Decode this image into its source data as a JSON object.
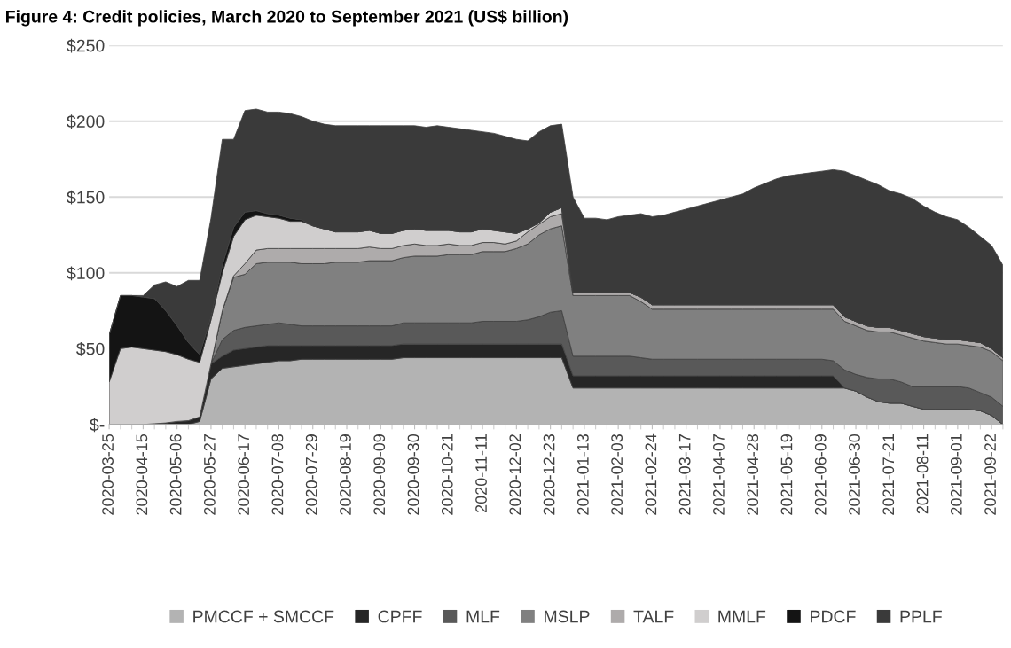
{
  "chart_data": {
    "type": "area",
    "stacked": true,
    "title": "Figure 4: Credit policies, March 2020 to September 2021 (US$ billion)",
    "categories": [
      "2020-03-25",
      null,
      null,
      "2020-04-15",
      null,
      null,
      "2020-05-06",
      null,
      null,
      "2020-05-27",
      null,
      null,
      "2020-06-17",
      null,
      null,
      "2020-07-08",
      null,
      null,
      "2020-07-29",
      null,
      null,
      "2020-08-19",
      null,
      null,
      "2020-09-09",
      null,
      null,
      "2020-09-30",
      null,
      null,
      "2020-10-21",
      null,
      null,
      "2020-11-11",
      null,
      null,
      "2020-12-02",
      null,
      null,
      "2020-12-23",
      null,
      null,
      "2021-01-13",
      null,
      null,
      "2021-02-03",
      null,
      null,
      "2021-02-24",
      null,
      null,
      "2021-03-17",
      null,
      null,
      "2021-04-07",
      null,
      null,
      "2021-04-28",
      null,
      null,
      "2021-05-19",
      null,
      null,
      "2021-06-09",
      null,
      null,
      "2021-06-30",
      null,
      null,
      "2021-07-21",
      null,
      null,
      "2021-08-11",
      null,
      null,
      "2021-09-01",
      null,
      null,
      "2021-09-22",
      null
    ],
    "series": [
      {
        "name": "PMCCF + SMCCF",
        "color": "#b3b3b3",
        "values": [
          0,
          0,
          0,
          0,
          0,
          0,
          0,
          0,
          2,
          30,
          37,
          38,
          39,
          40,
          41,
          42,
          42,
          43,
          43,
          43,
          43,
          43,
          43,
          43,
          43,
          43,
          44,
          44,
          44,
          44,
          44,
          44,
          44,
          44,
          44,
          44,
          44,
          44,
          44,
          44,
          44,
          24,
          24,
          24,
          24,
          24,
          24,
          24,
          24,
          24,
          24,
          24,
          24,
          24,
          24,
          24,
          24,
          24,
          24,
          24,
          24,
          24,
          24,
          24,
          24,
          24,
          22,
          18,
          15,
          14,
          14,
          12,
          10,
          10,
          10,
          10,
          10,
          9,
          6,
          0
        ]
      },
      {
        "name": "CPFF",
        "color": "#262626",
        "values": [
          0,
          0,
          0,
          0,
          0.5,
          1,
          2,
          2.5,
          3,
          10,
          8,
          11,
          11,
          11,
          11,
          10,
          10,
          9,
          9,
          9,
          9,
          9,
          9,
          9,
          9,
          9,
          9,
          9,
          9,
          9,
          9,
          9,
          9,
          9,
          9,
          9,
          9,
          9,
          9,
          9,
          9,
          8,
          8,
          8,
          8,
          8,
          8,
          8,
          8,
          8,
          8,
          8,
          8,
          8,
          8,
          8,
          8,
          8,
          8,
          8,
          8,
          8,
          8,
          8,
          8,
          0,
          0,
          0,
          0,
          0,
          0,
          0,
          0,
          0,
          0,
          0,
          0,
          0,
          0,
          0
        ]
      },
      {
        "name": "MLF",
        "color": "#595959",
        "values": [
          0,
          0,
          0,
          0,
          0,
          0,
          0,
          0,
          0,
          0,
          11,
          13,
          14,
          14,
          14,
          15,
          14,
          13,
          13,
          13,
          13,
          13,
          13,
          13,
          13,
          13,
          14,
          14,
          14,
          14,
          14,
          14,
          14,
          15,
          15,
          15,
          15,
          16,
          18,
          21,
          22,
          13,
          13,
          13,
          13,
          13,
          13,
          12,
          11,
          11,
          11,
          11,
          11,
          11,
          11,
          11,
          11,
          11,
          11,
          11,
          11,
          11,
          11,
          11,
          10,
          12,
          11,
          13,
          15,
          16,
          14,
          13,
          15,
          15,
          15,
          15,
          14,
          12,
          12,
          12
        ]
      },
      {
        "name": "MSLP",
        "color": "#808080",
        "values": [
          0,
          0,
          0,
          0,
          0,
          0,
          0,
          0,
          0,
          0,
          19,
          35,
          35,
          41,
          41,
          40,
          41,
          41,
          41,
          41,
          42,
          42,
          42,
          43,
          43,
          43,
          43,
          44,
          44,
          44,
          45,
          45,
          45,
          46,
          46,
          46,
          48,
          50,
          54,
          55,
          56,
          40,
          40,
          40,
          40,
          40,
          40,
          37,
          33,
          33,
          33,
          33,
          33,
          33,
          33,
          33,
          33,
          33,
          33,
          33,
          33,
          33,
          33,
          33,
          34,
          32,
          32,
          31,
          31,
          31,
          31,
          32,
          30,
          29,
          28,
          28,
          28,
          30,
          30,
          30
        ]
      },
      {
        "name": "TALF",
        "color": "#aeabab",
        "values": [
          0,
          0,
          0,
          0,
          0,
          0,
          0,
          0,
          0,
          0,
          0,
          1,
          7,
          9,
          9,
          9,
          9,
          10,
          10,
          10,
          9,
          9,
          9,
          9,
          8,
          8,
          8,
          8,
          7,
          7,
          7,
          6,
          6,
          6,
          6,
          5,
          5,
          8,
          7,
          8,
          8,
          2,
          2,
          2,
          2,
          2,
          2,
          3,
          3,
          3,
          3,
          3,
          3,
          3,
          3,
          3,
          3,
          3,
          3,
          3,
          3,
          3,
          3,
          3,
          3,
          3,
          3,
          3,
          3,
          3,
          3,
          3,
          3,
          3,
          3,
          3,
          3,
          3,
          2,
          2
        ]
      },
      {
        "name": "MMLF",
        "color": "#d0cece",
        "values": [
          28,
          50,
          51,
          50,
          48.5,
          47,
          44,
          40.5,
          36,
          29,
          25,
          26,
          29,
          23,
          21,
          20,
          18,
          18,
          15,
          13,
          11,
          11,
          11,
          11,
          10,
          10,
          10,
          10,
          10,
          10,
          9,
          9,
          9,
          9,
          8,
          8,
          5,
          2,
          1,
          3,
          4,
          0,
          0,
          0,
          0,
          0,
          0,
          0,
          0,
          0,
          0,
          0,
          0,
          0,
          0,
          0,
          0,
          0,
          0,
          0,
          0,
          0,
          0,
          0,
          0,
          0,
          0,
          0,
          0,
          0,
          0,
          0,
          0,
          0,
          0,
          0,
          0,
          0,
          0,
          0
        ]
      },
      {
        "name": "PDCF",
        "color": "#141414",
        "values": [
          31,
          35,
          34,
          34,
          34,
          27,
          19,
          11,
          5,
          2,
          5,
          6,
          5,
          3,
          2,
          2,
          2,
          1,
          0,
          0,
          0,
          0,
          0,
          0,
          0,
          0,
          0,
          0,
          0,
          0,
          0,
          0,
          0,
          0,
          0,
          0,
          0,
          0,
          0,
          0,
          0,
          0,
          0,
          0,
          0,
          0,
          0,
          0,
          0,
          0,
          0,
          0,
          0,
          0,
          0,
          0,
          0,
          0,
          0,
          0,
          0,
          0,
          0,
          0,
          0,
          0,
          0,
          0,
          0,
          0,
          0,
          0,
          0,
          0,
          0,
          0,
          0,
          0,
          0,
          0
        ]
      },
      {
        "name": "PPLF",
        "color": "#3a3a3a",
        "values": [
          0,
          0,
          0,
          1,
          9,
          19,
          26,
          41,
          49,
          65,
          83,
          58,
          67,
          67,
          67,
          68,
          69,
          68,
          69,
          69,
          70,
          70,
          70,
          69,
          71,
          71,
          69,
          68,
          68,
          69,
          68,
          68,
          67,
          64,
          64,
          63,
          62,
          58,
          60,
          57,
          55,
          63,
          49,
          49,
          48,
          50,
          51,
          55,
          58,
          59,
          61,
          63,
          65,
          67,
          69,
          71,
          73,
          77,
          80,
          83,
          85,
          86,
          87,
          88,
          89,
          96,
          96,
          96,
          94,
          90,
          90,
          89,
          86,
          83,
          81,
          79,
          75,
          70,
          68,
          61
        ]
      }
    ],
    "ylim": [
      0,
      250
    ],
    "yticks": [
      {
        "value": 0,
        "label": "$-"
      },
      {
        "value": 50,
        "label": "$50"
      },
      {
        "value": 100,
        "label": "$100"
      },
      {
        "value": 150,
        "label": "$150"
      },
      {
        "value": 200,
        "label": "$200"
      },
      {
        "value": 250,
        "label": "$250"
      }
    ],
    "grid": "y",
    "legend": "bottom"
  }
}
